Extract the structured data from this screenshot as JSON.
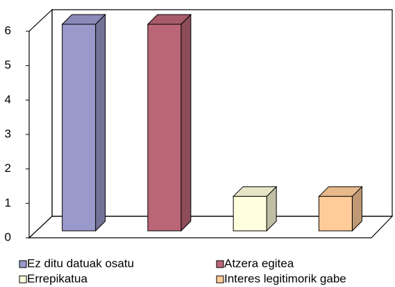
{
  "chart_data": {
    "type": "bar",
    "series": [
      {
        "name": "Ez ditu datuak osatu",
        "color": "#9999cc",
        "values": [
          6
        ]
      },
      {
        "name": "Atzera egitea",
        "color": "#bb6677",
        "values": [
          6
        ]
      },
      {
        "name": "Errepikatua",
        "color": "#ffffdd",
        "values": [
          1
        ]
      },
      {
        "name": "Interes legitimorik gabe",
        "color": "#ffcc99",
        "values": [
          1
        ]
      }
    ],
    "ylim": [
      0,
      6
    ],
    "yticks": [
      0,
      1,
      2,
      3,
      4,
      5,
      6
    ],
    "grid": false,
    "legend": "bottom"
  }
}
